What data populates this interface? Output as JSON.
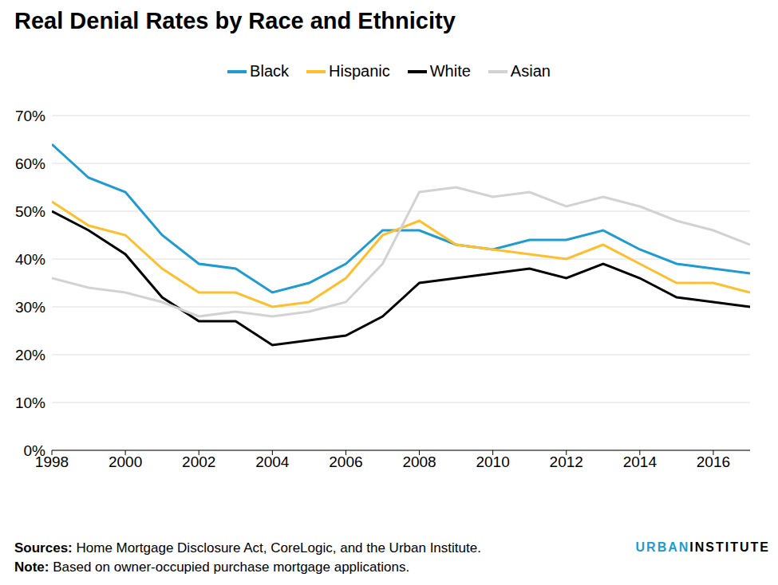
{
  "chart_data": {
    "type": "line",
    "title": "Real Denial Rates by Race and Ethnicity",
    "x": [
      1998,
      1999,
      2000,
      2001,
      2002,
      2003,
      2004,
      2005,
      2006,
      2007,
      2008,
      2009,
      2010,
      2011,
      2012,
      2013,
      2014,
      2015,
      2016,
      2017
    ],
    "series": [
      {
        "name": "Black",
        "color": "#1f9bd1",
        "values": [
          64,
          57,
          54,
          45,
          39,
          38,
          33,
          35,
          39,
          46,
          46,
          43,
          42,
          44,
          44,
          46,
          42,
          39,
          38,
          37
        ]
      },
      {
        "name": "Hispanic",
        "color": "#fdbf2d",
        "values": [
          52,
          47,
          45,
          38,
          33,
          33,
          30,
          31,
          36,
          45,
          48,
          43,
          42,
          41,
          40,
          43,
          39,
          35,
          35,
          33
        ]
      },
      {
        "name": "White",
        "color": "#000000",
        "values": [
          50,
          46,
          41,
          32,
          27,
          27,
          22,
          23,
          24,
          28,
          35,
          36,
          37,
          38,
          36,
          39,
          36,
          32,
          31,
          30
        ]
      },
      {
        "name": "Asian",
        "color": "#d2d2d2",
        "values": [
          36,
          34,
          33,
          31,
          28,
          29,
          28,
          29,
          31,
          39,
          54,
          55,
          53,
          54,
          51,
          53,
          51,
          48,
          46,
          43
        ]
      }
    ],
    "xlim": [
      1998,
      2017
    ],
    "xticks": [
      1998,
      2000,
      2002,
      2004,
      2006,
      2008,
      2010,
      2012,
      2014,
      2016
    ],
    "ylim": [
      0,
      70
    ],
    "yticks": [
      {
        "value": 0,
        "label": "0%"
      },
      {
        "value": 10,
        "label": "10%"
      },
      {
        "value": 20,
        "label": "20%"
      },
      {
        "value": 30,
        "label": "30%"
      },
      {
        "value": 40,
        "label": "40%"
      },
      {
        "value": 50,
        "label": "50%"
      },
      {
        "value": 60,
        "label": "60%"
      },
      {
        "value": 70,
        "label": "70%"
      }
    ],
    "grid": true,
    "legend": "top",
    "footnotes": [
      {
        "label": "Sources:",
        "text": "Home Mortgage Disclosure Act, CoreLogic, and the Urban Institute."
      },
      {
        "label": "Note:",
        "text": "Based on owner-occupied purchase mortgage applications."
      }
    ],
    "branding": "URBAN INSTITUTE"
  }
}
